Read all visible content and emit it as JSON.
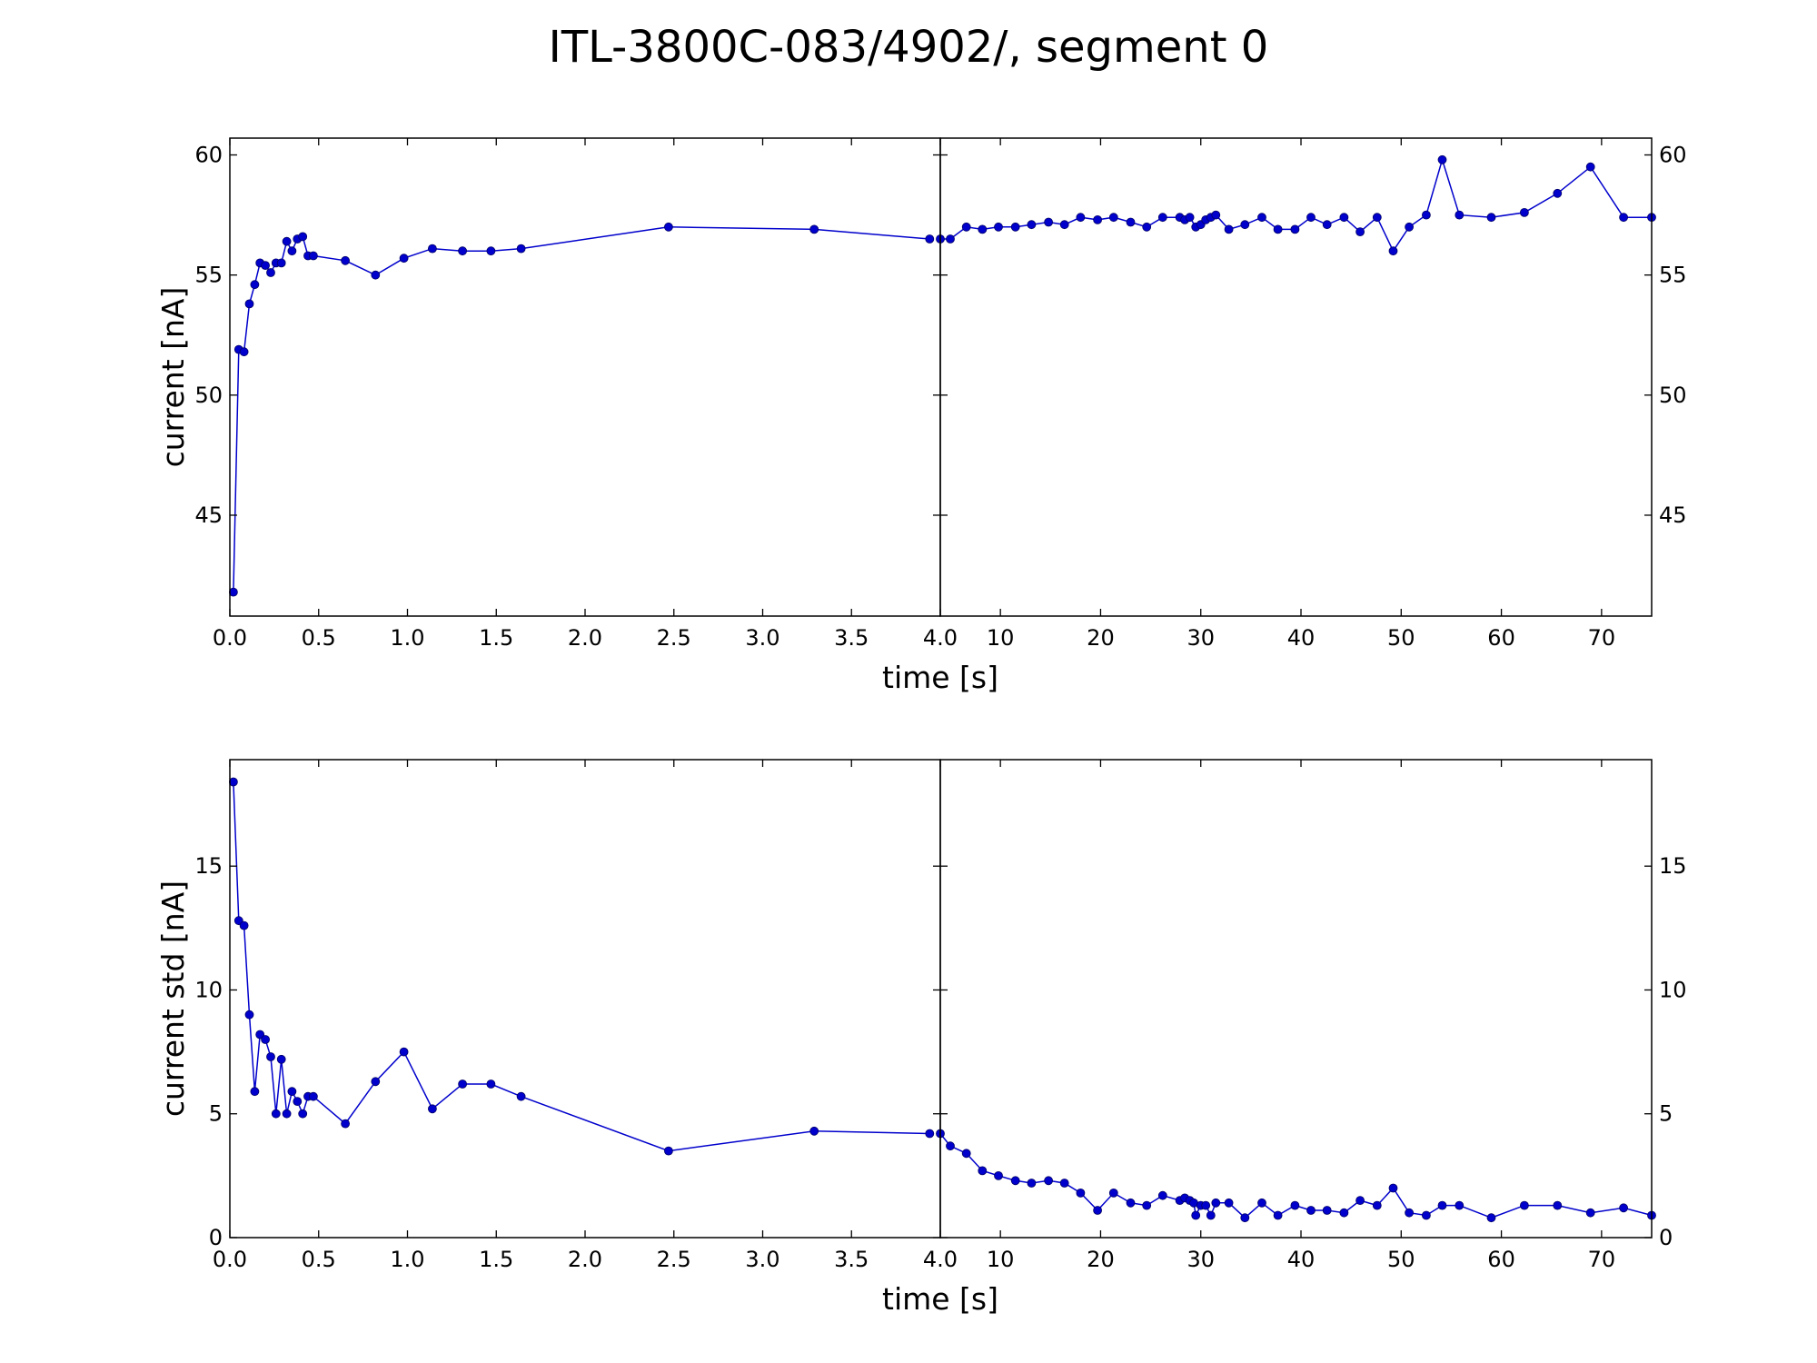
{
  "figure": {
    "title": "ITL-3800C-083/4902/, segment 0",
    "series_color": "#0000cc"
  },
  "chart_data": [
    {
      "type": "scatter",
      "ylabel": "current [nA]",
      "xlabel": "time [s]",
      "ylim": [
        40.8,
        60.7
      ],
      "yticks": [
        45,
        50,
        55,
        60
      ],
      "grid": false,
      "left_panel": {
        "xlim": [
          0,
          4
        ],
        "xticks": [
          0.0,
          0.5,
          1.0,
          1.5,
          2.0,
          2.5,
          3.0,
          3.5,
          4.0
        ],
        "x": [
          0.02,
          0.05,
          0.08,
          0.11,
          0.14,
          0.17,
          0.2,
          0.23,
          0.26,
          0.29,
          0.32,
          0.35,
          0.38,
          0.41,
          0.44,
          0.47,
          0.65,
          0.82,
          0.98,
          1.14,
          1.31,
          1.47,
          1.64,
          2.47,
          3.29,
          3.94
        ],
        "y": [
          41.8,
          51.9,
          51.8,
          53.8,
          54.6,
          55.5,
          55.4,
          55.1,
          55.5,
          55.5,
          56.4,
          56.0,
          56.5,
          56.6,
          55.8,
          55.8,
          55.6,
          55.0,
          55.7,
          56.1,
          56.0,
          56.0,
          56.1,
          57.0,
          56.9,
          56.5
        ]
      },
      "right_panel": {
        "xlim": [
          4,
          75
        ],
        "xticks": [
          10,
          20,
          30,
          40,
          50,
          60,
          70
        ],
        "x": [
          4.0,
          5.0,
          6.6,
          8.2,
          9.8,
          11.5,
          13.1,
          14.8,
          16.4,
          18.0,
          19.7,
          21.3,
          23.0,
          24.6,
          26.2,
          27.9,
          28.4,
          28.9,
          29.5,
          30.0,
          30.5,
          31.0,
          31.5,
          32.8,
          34.4,
          36.1,
          37.7,
          39.4,
          41.0,
          42.6,
          44.3,
          45.9,
          47.6,
          49.2,
          50.8,
          52.5,
          54.1,
          55.8,
          59.0,
          62.3,
          65.6,
          68.9,
          72.2,
          75.0
        ],
        "y": [
          56.5,
          56.5,
          57.0,
          56.9,
          57.0,
          57.0,
          57.1,
          57.2,
          57.1,
          57.4,
          57.3,
          57.4,
          57.2,
          57.0,
          57.4,
          57.4,
          57.3,
          57.4,
          57.0,
          57.1,
          57.3,
          57.4,
          57.5,
          56.9,
          57.1,
          57.4,
          56.9,
          56.9,
          57.4,
          57.1,
          57.4,
          56.8,
          57.4,
          56.0,
          57.0,
          57.5,
          59.8,
          57.5,
          57.4,
          57.6,
          58.4,
          59.5,
          57.4,
          57.4
        ]
      }
    },
    {
      "type": "scatter",
      "ylabel": "current std [nA]",
      "xlabel": "time [s]",
      "ylim": [
        0,
        19.3
      ],
      "yticks": [
        0,
        5,
        10,
        15
      ],
      "grid": false,
      "left_panel": {
        "xlim": [
          0,
          4
        ],
        "xticks": [
          0.0,
          0.5,
          1.0,
          1.5,
          2.0,
          2.5,
          3.0,
          3.5,
          4.0
        ],
        "x": [
          0.02,
          0.05,
          0.08,
          0.11,
          0.14,
          0.17,
          0.2,
          0.23,
          0.26,
          0.29,
          0.32,
          0.35,
          0.38,
          0.41,
          0.44,
          0.47,
          0.65,
          0.82,
          0.98,
          1.14,
          1.31,
          1.47,
          1.64,
          2.47,
          3.29,
          3.94
        ],
        "y": [
          18.4,
          12.8,
          12.6,
          9.0,
          5.9,
          8.2,
          8.0,
          7.3,
          5.0,
          7.2,
          5.0,
          5.9,
          5.5,
          5.0,
          5.7,
          5.7,
          4.6,
          6.3,
          7.5,
          5.2,
          6.2,
          6.2,
          5.7,
          3.5,
          4.3,
          4.2
        ]
      },
      "right_panel": {
        "xlim": [
          4,
          75
        ],
        "xticks": [
          10,
          20,
          30,
          40,
          50,
          60,
          70
        ],
        "x": [
          4.0,
          5.0,
          6.6,
          8.2,
          9.8,
          11.5,
          13.1,
          14.8,
          16.4,
          18.0,
          19.7,
          21.3,
          23.0,
          24.6,
          26.2,
          27.9,
          28.4,
          28.9,
          29.3,
          29.5,
          30.0,
          30.5,
          31.0,
          31.5,
          32.8,
          34.4,
          36.1,
          37.7,
          39.4,
          41.0,
          42.6,
          44.3,
          45.9,
          47.6,
          49.2,
          50.8,
          52.5,
          54.1,
          55.8,
          59.0,
          62.3,
          65.6,
          68.9,
          72.2,
          75.0
        ],
        "y": [
          4.2,
          3.7,
          3.4,
          2.7,
          2.5,
          2.3,
          2.2,
          2.3,
          2.2,
          1.8,
          1.1,
          1.8,
          1.4,
          1.3,
          1.7,
          1.5,
          1.6,
          1.5,
          1.4,
          0.9,
          1.3,
          1.3,
          0.9,
          1.4,
          1.4,
          0.8,
          1.4,
          0.9,
          1.3,
          1.1,
          1.1,
          1.0,
          1.5,
          1.3,
          2.0,
          1.0,
          0.9,
          1.3,
          1.3,
          0.8,
          1.3,
          1.3,
          1.0,
          1.2,
          0.9
        ]
      }
    }
  ]
}
